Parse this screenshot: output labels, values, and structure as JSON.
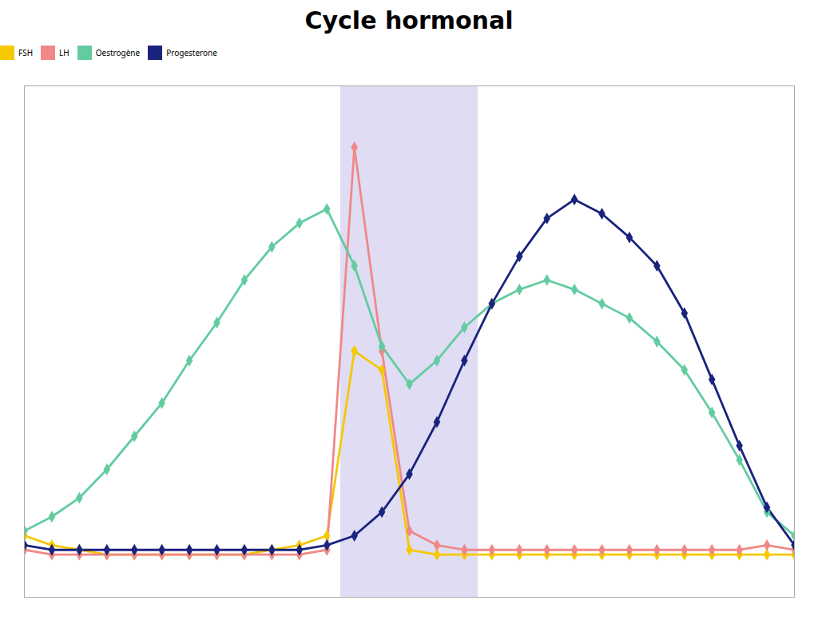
{
  "chart_data": {
    "type": "line",
    "title": "Cycle hormonal",
    "x": [
      0,
      1,
      2,
      3,
      4,
      5,
      6,
      7,
      8,
      9,
      10,
      11,
      12,
      13,
      14,
      15,
      16,
      17,
      18,
      19,
      20,
      21,
      22,
      23,
      24,
      25,
      26,
      27,
      28
    ],
    "series": [
      {
        "name": "FSH",
        "color": "#f5c800",
        "marker": "diamond",
        "values": [
          0.13,
          0.11,
          0.1,
          0.09,
          0.09,
          0.09,
          0.09,
          0.09,
          0.09,
          0.1,
          0.11,
          0.13,
          0.52,
          0.48,
          0.1,
          0.09,
          0.09,
          0.09,
          0.09,
          0.09,
          0.09,
          0.09,
          0.09,
          0.09,
          0.09,
          0.09,
          0.09,
          0.09,
          0.09
        ]
      },
      {
        "name": "LH",
        "color": "#f08888",
        "marker": "diamond",
        "values": [
          0.1,
          0.09,
          0.09,
          0.09,
          0.09,
          0.09,
          0.09,
          0.09,
          0.09,
          0.09,
          0.09,
          0.1,
          0.95,
          0.52,
          0.14,
          0.11,
          0.1,
          0.1,
          0.1,
          0.1,
          0.1,
          0.1,
          0.1,
          0.1,
          0.1,
          0.1,
          0.1,
          0.11,
          0.1
        ]
      },
      {
        "name": "Oestrogène",
        "color": "#62cca0",
        "marker": "diamond",
        "values": [
          0.14,
          0.17,
          0.21,
          0.27,
          0.34,
          0.41,
          0.5,
          0.58,
          0.67,
          0.74,
          0.79,
          0.82,
          0.7,
          0.53,
          0.45,
          0.5,
          0.57,
          0.62,
          0.65,
          0.67,
          0.65,
          0.62,
          0.59,
          0.54,
          0.48,
          0.39,
          0.29,
          0.18,
          0.13
        ]
      },
      {
        "name": "Progesterone",
        "color": "#1a237e",
        "marker": "diamond",
        "values": [
          0.11,
          0.1,
          0.1,
          0.1,
          0.1,
          0.1,
          0.1,
          0.1,
          0.1,
          0.1,
          0.1,
          0.11,
          0.13,
          0.18,
          0.26,
          0.37,
          0.5,
          0.62,
          0.72,
          0.8,
          0.84,
          0.81,
          0.76,
          0.7,
          0.6,
          0.46,
          0.32,
          0.19,
          0.11
        ]
      }
    ],
    "shaded_x": [
      11.5,
      16.5
    ],
    "xlim": [
      0,
      28
    ],
    "ylim": [
      0.0,
      1.08
    ],
    "tick_labels": false,
    "grid": false,
    "legend": "top"
  }
}
